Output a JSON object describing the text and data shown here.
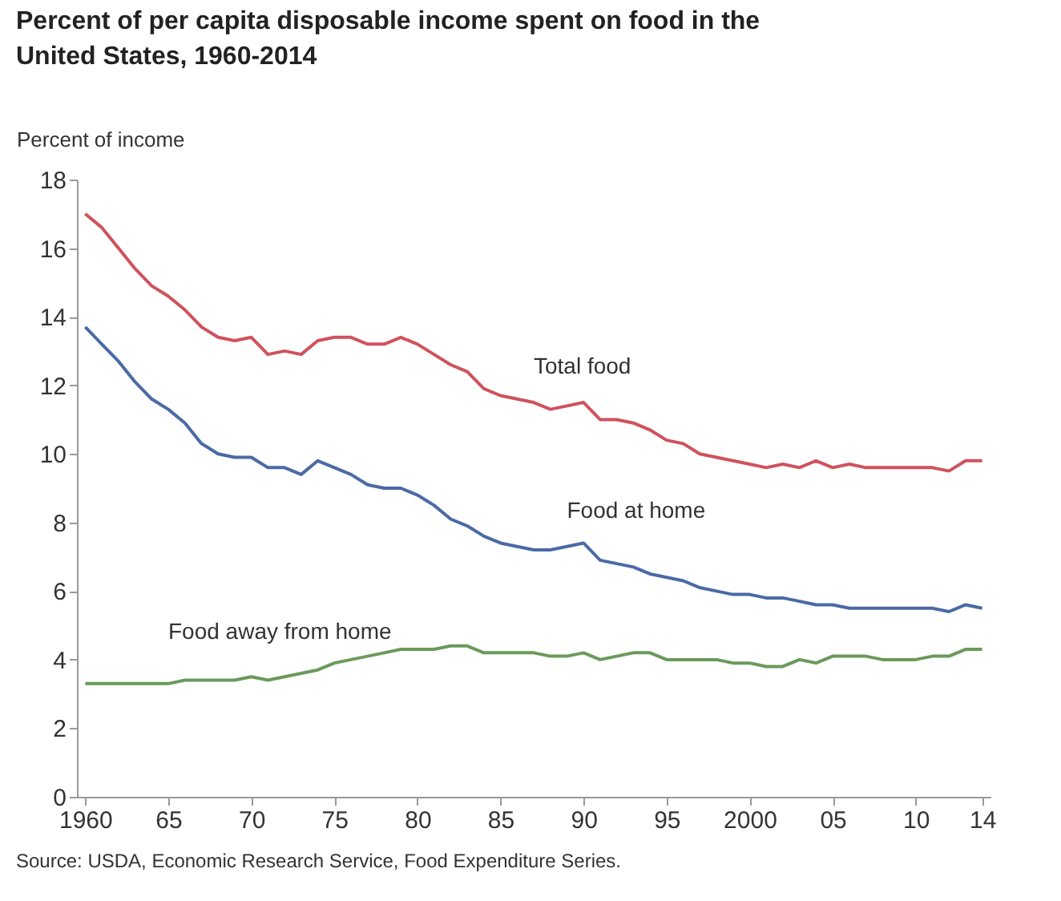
{
  "chart_data": {
    "type": "line",
    "title": "Percent of per capita disposable income spent on food in the United States, 1960-2014",
    "ylabel": "Percent of income",
    "x": [
      1960,
      1961,
      1962,
      1963,
      1964,
      1965,
      1966,
      1967,
      1968,
      1969,
      1970,
      1971,
      1972,
      1973,
      1974,
      1975,
      1976,
      1977,
      1978,
      1979,
      1980,
      1981,
      1982,
      1983,
      1984,
      1985,
      1986,
      1987,
      1988,
      1989,
      1990,
      1991,
      1992,
      1993,
      1994,
      1995,
      1996,
      1997,
      1998,
      1999,
      2000,
      2001,
      2002,
      2003,
      2004,
      2005,
      2006,
      2007,
      2008,
      2009,
      2010,
      2011,
      2012,
      2013,
      2014
    ],
    "series": [
      {
        "name": "Total food",
        "color": "#d0525c",
        "values": [
          17.0,
          16.6,
          16.0,
          15.4,
          14.9,
          14.6,
          14.2,
          13.7,
          13.4,
          13.3,
          13.4,
          12.9,
          13.0,
          12.9,
          13.3,
          13.4,
          13.4,
          13.2,
          13.2,
          13.4,
          13.2,
          12.9,
          12.6,
          12.4,
          11.9,
          11.7,
          11.6,
          11.5,
          11.3,
          11.4,
          11.5,
          11.0,
          11.0,
          10.9,
          10.7,
          10.4,
          10.3,
          10.0,
          9.9,
          9.8,
          9.7,
          9.6,
          9.7,
          9.6,
          9.8,
          9.6,
          9.7,
          9.6,
          9.6,
          9.6,
          9.6,
          9.6,
          9.5,
          9.8,
          9.8
        ]
      },
      {
        "name": "Food at home",
        "color": "#4a6aa5",
        "values": [
          13.7,
          13.2,
          12.7,
          12.1,
          11.6,
          11.3,
          10.9,
          10.3,
          10.0,
          9.9,
          9.9,
          9.6,
          9.6,
          9.4,
          9.8,
          9.6,
          9.4,
          9.1,
          9.0,
          9.0,
          8.8,
          8.5,
          8.1,
          7.9,
          7.6,
          7.4,
          7.3,
          7.2,
          7.2,
          7.3,
          7.4,
          6.9,
          6.8,
          6.7,
          6.5,
          6.4,
          6.3,
          6.1,
          6.0,
          5.9,
          5.9,
          5.8,
          5.8,
          5.7,
          5.6,
          5.6,
          5.5,
          5.5,
          5.5,
          5.5,
          5.5,
          5.5,
          5.4,
          5.6,
          5.5
        ]
      },
      {
        "name": "Food away from home",
        "color": "#6a9a5a",
        "values": [
          3.3,
          3.3,
          3.3,
          3.3,
          3.3,
          3.3,
          3.4,
          3.4,
          3.4,
          3.4,
          3.5,
          3.4,
          3.5,
          3.6,
          3.7,
          3.9,
          4.0,
          4.1,
          4.2,
          4.3,
          4.3,
          4.3,
          4.4,
          4.4,
          4.2,
          4.2,
          4.2,
          4.2,
          4.1,
          4.1,
          4.2,
          4.0,
          4.1,
          4.2,
          4.2,
          4.0,
          4.0,
          4.0,
          4.0,
          3.9,
          3.9,
          3.8,
          3.8,
          4.0,
          3.9,
          4.1,
          4.1,
          4.1,
          4.0,
          4.0,
          4.0,
          4.1,
          4.1,
          4.3,
          4.3
        ]
      }
    ],
    "xlim": [
      1959.5,
      2014.5
    ],
    "xticks": [
      {
        "value": 1960,
        "label": "1960"
      },
      {
        "value": 1965,
        "label": "65"
      },
      {
        "value": 1970,
        "label": "70"
      },
      {
        "value": 1975,
        "label": "75"
      },
      {
        "value": 1980,
        "label": "80"
      },
      {
        "value": 1985,
        "label": "85"
      },
      {
        "value": 1990,
        "label": "90"
      },
      {
        "value": 1995,
        "label": "95"
      },
      {
        "value": 2000,
        "label": "2000"
      },
      {
        "value": 2005,
        "label": "05"
      },
      {
        "value": 2010,
        "label": "10"
      },
      {
        "value": 2014,
        "label": "14"
      }
    ],
    "ylim": [
      0,
      18
    ],
    "yticks": [
      0,
      2,
      4,
      6,
      8,
      10,
      12,
      14,
      16,
      18
    ],
    "grid": false,
    "legend": false,
    "annotations": [
      "Source: USDA, Economic Research Service, Food Expenditure Series."
    ]
  }
}
